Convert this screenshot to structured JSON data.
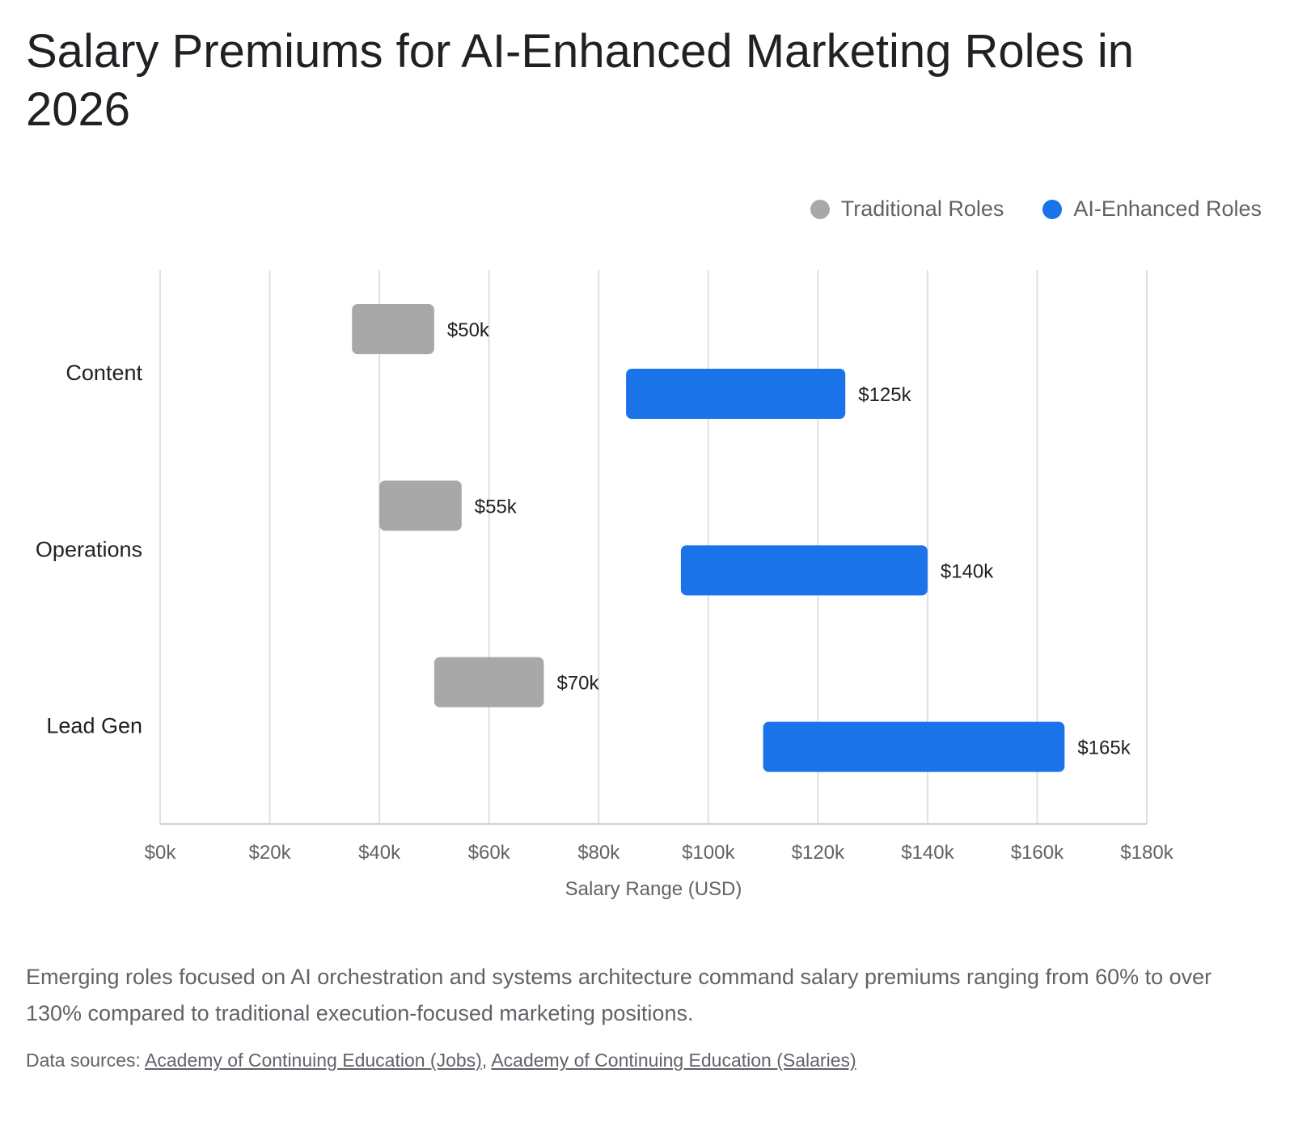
{
  "title": "Salary Premiums for AI-Enhanced Marketing Roles in 2026",
  "note": "Emerging roles focused on AI orchestration and systems architecture command salary premiums ranging from 60% to over 130% compared to traditional execution-focused marketing positions.",
  "sources": {
    "prefix": "Data sources:",
    "separator": ",",
    "links": [
      "Academy of Continuing Education (Jobs)",
      "Academy of Continuing Education (Salaries)"
    ]
  },
  "colors": {
    "traditional": "#a8a8a8",
    "ai": "#1a73e8",
    "grid": "#e0e0e0"
  },
  "chart_data": {
    "type": "bar",
    "orientation": "horizontal-range",
    "categories": [
      "Content",
      "Operations",
      "Lead Gen"
    ],
    "series": [
      {
        "name": "Traditional Roles",
        "color": "#a8a8a8",
        "ranges": [
          [
            35,
            50
          ],
          [
            40,
            55
          ],
          [
            50,
            70
          ]
        ],
        "labels": [
          "$50k",
          "$55k",
          "$70k"
        ]
      },
      {
        "name": "AI-Enhanced Roles",
        "color": "#1a73e8",
        "ranges": [
          [
            85,
            125
          ],
          [
            95,
            140
          ],
          [
            110,
            165
          ]
        ],
        "labels": [
          "$125k",
          "$140k",
          "$165k"
        ]
      }
    ],
    "xlim": [
      0,
      180
    ],
    "xticks": [
      0,
      20,
      40,
      60,
      80,
      100,
      120,
      140,
      160,
      180
    ],
    "xtick_labels": [
      "$0k",
      "$20k",
      "$40k",
      "$60k",
      "$80k",
      "$100k",
      "$120k",
      "$140k",
      "$160k",
      "$180k"
    ],
    "xlabel": "Salary Range (USD)",
    "ylabel": "",
    "grid": true,
    "legend_position": "top-right"
  }
}
